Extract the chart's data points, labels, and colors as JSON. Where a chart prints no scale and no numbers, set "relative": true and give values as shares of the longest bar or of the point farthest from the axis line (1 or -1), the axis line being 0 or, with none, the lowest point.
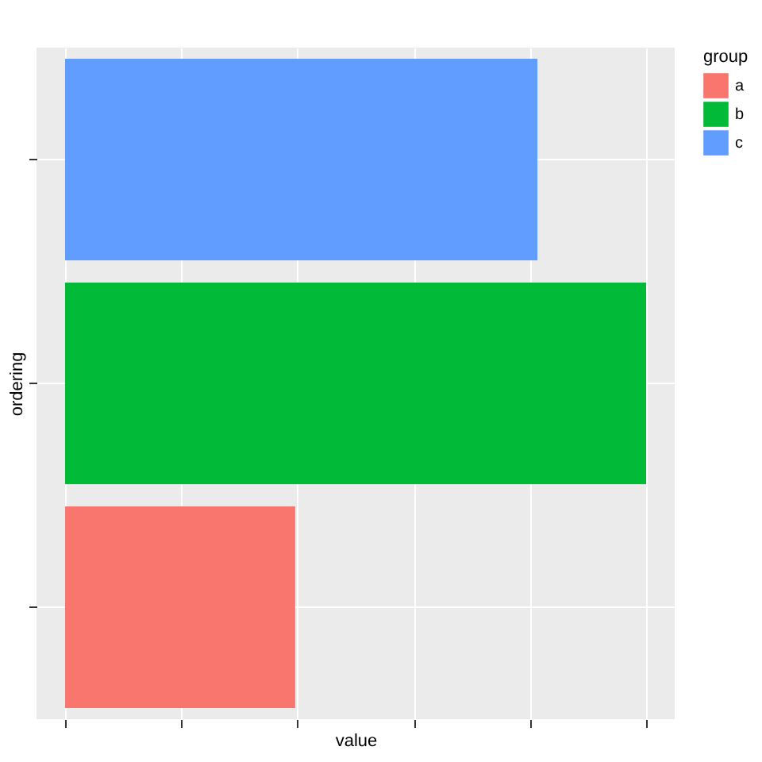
{
  "chart_data": {
    "type": "bar",
    "orientation": "horizontal",
    "relative": true,
    "stacked": true,
    "categories": [
      null,
      null,
      null
    ],
    "series": [
      {
        "name": "a",
        "color": "#f8766d",
        "values": [
          0,
          0,
          0.396
        ]
      },
      {
        "name": "b",
        "color": "#00ba38",
        "values": [
          0,
          1,
          0
        ]
      },
      {
        "name": "c",
        "color": "#619cff",
        "values": [
          0.813,
          0,
          0
        ]
      }
    ],
    "xlabel": "value",
    "ylabel": "ordering",
    "legend_title": "group",
    "legend": "right",
    "grid": true,
    "tick_labels": false
  }
}
